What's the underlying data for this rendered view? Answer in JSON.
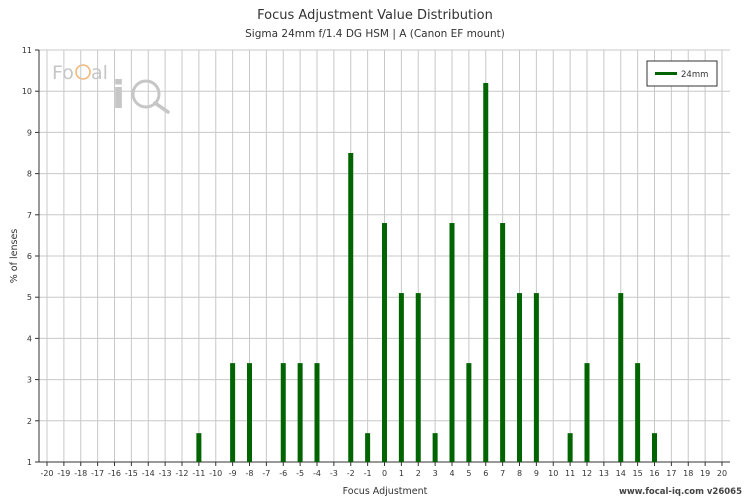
{
  "chart_data": {
    "type": "bar",
    "title": "Focus Adjustment Value Distribution",
    "subtitle": "Sigma 24mm f/1.4 DG HSM | A (Canon EF mount)",
    "xlabel": "Focus Adjustment",
    "ylabel": "% of lenses",
    "xlim": [
      -20,
      20
    ],
    "ylim": [
      1,
      11
    ],
    "grid": true,
    "legend_position": "top-right",
    "series": [
      {
        "name": "24mm",
        "color": "#006400",
        "points": [
          {
            "x": -11,
            "y": 1.7
          },
          {
            "x": -9,
            "y": 3.4
          },
          {
            "x": -8,
            "y": 3.4
          },
          {
            "x": -6,
            "y": 3.4
          },
          {
            "x": -5,
            "y": 3.4
          },
          {
            "x": -4,
            "y": 3.4
          },
          {
            "x": -2,
            "y": 8.5
          },
          {
            "x": -1,
            "y": 1.7
          },
          {
            "x": 0,
            "y": 6.8
          },
          {
            "x": 1,
            "y": 5.1
          },
          {
            "x": 2,
            "y": 5.1
          },
          {
            "x": 3,
            "y": 1.7
          },
          {
            "x": 4,
            "y": 6.8
          },
          {
            "x": 5,
            "y": 3.4
          },
          {
            "x": 6,
            "y": 10.2
          },
          {
            "x": 7,
            "y": 6.8
          },
          {
            "x": 8,
            "y": 5.1
          },
          {
            "x": 9,
            "y": 5.1
          },
          {
            "x": 11,
            "y": 1.7
          },
          {
            "x": 12,
            "y": 3.4
          },
          {
            "x": 14,
            "y": 5.1
          },
          {
            "x": 15,
            "y": 3.4
          },
          {
            "x": 16,
            "y": 1.7
          }
        ]
      }
    ]
  },
  "watermark": "www.focal-iq.com  v26065",
  "logo": {
    "text_focal": "FoCal",
    "text_iq": "iQ"
  },
  "colors": {
    "bar": "#006400",
    "grid": "#c8c8c8",
    "axis": "#333333",
    "logo_gray": "#b3b3b3",
    "logo_orange": "#f0a050"
  }
}
